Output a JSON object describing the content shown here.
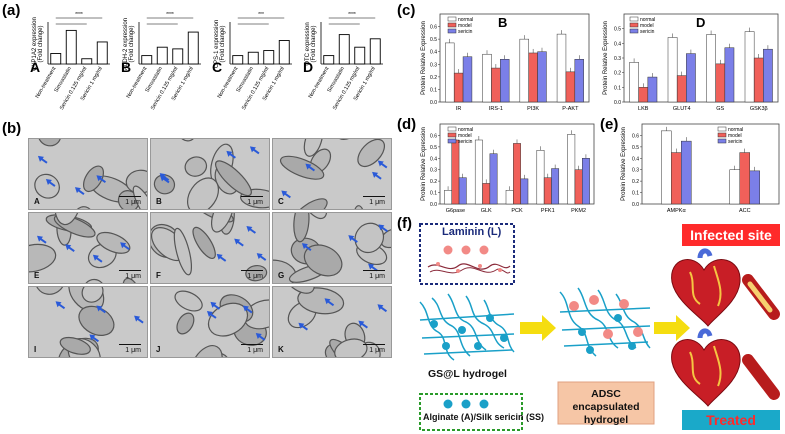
{
  "panel_labels": {
    "a": "(a)",
    "b": "(b)",
    "c": "(c)",
    "d": "(d)",
    "e": "(e)",
    "f": "(f)"
  },
  "panel_a_charts": [
    {
      "letter": "A",
      "ylabel": "CYP1A2 expression",
      "ylabel2": "(Fold change)",
      "sig": "****"
    },
    {
      "letter": "B",
      "ylabel": "ALDH-2 expression",
      "ylabel2": "(Fold change)",
      "sig": "****"
    },
    {
      "letter": "C",
      "ylabel": "CPS-1 expression",
      "ylabel2": "(Fold change)",
      "sig": "***"
    },
    {
      "letter": "D",
      "ylabel": "OTC expression",
      "ylabel2": "(Fold change)",
      "sig": "****"
    }
  ],
  "panel_a_categories": [
    "Non-treatment",
    "Simvastatin",
    "Sericin 0.125 mg/ml",
    "Sericin 1 mg/ml"
  ],
  "em_images": [
    {
      "letter": "A",
      "scale": "1 μm"
    },
    {
      "letter": "B",
      "scale": "1 μm"
    },
    {
      "letter": "C",
      "scale": "1 μm"
    },
    {
      "letter": "E",
      "scale": "1 μm"
    },
    {
      "letter": "F",
      "scale": "1 μm"
    },
    {
      "letter": "G",
      "scale": "1 μm"
    },
    {
      "letter": "I",
      "scale": "1 μm"
    },
    {
      "letter": "J",
      "scale": "1 μm"
    },
    {
      "letter": "K",
      "scale": "1 μm"
    }
  ],
  "legend": {
    "normal": "normal",
    "model": "model",
    "sericin": "sericin"
  },
  "colors": {
    "normal": "#ffffff",
    "model": "#f0605a",
    "sericin": "#7b7fe8",
    "yellow_arrow": "#f5dd10",
    "red_title_bg": "#ff2a2a",
    "teal_title_bg": "#1aa9c9",
    "label_box_bg": "#f6c6a6"
  },
  "chart_data": [
    {
      "id": "a-A",
      "type": "bar",
      "categories": [
        "Non-treatment",
        "Simvastatin",
        "Sericin 0.125 mg/ml",
        "Sericin 1 mg/ml"
      ],
      "values": [
        1.0,
        3.2,
        0.5,
        2.1
      ],
      "ylim": [
        0,
        4
      ]
    },
    {
      "id": "a-B",
      "type": "bar",
      "categories": [
        "Non-treatment",
        "Simvastatin",
        "Sericin 0.125 mg/ml",
        "Sericin 1 mg/ml"
      ],
      "values": [
        1.0,
        2.0,
        1.8,
        3.8
      ],
      "ylim": [
        0,
        5
      ]
    },
    {
      "id": "a-C",
      "type": "bar",
      "categories": [
        "Non-treatment",
        "Simvastatin",
        "Sericin 0.125 mg/ml",
        "Sericin 1 mg/ml"
      ],
      "values": [
        1.0,
        1.4,
        1.6,
        2.8
      ],
      "ylim": [
        0,
        5
      ]
    },
    {
      "id": "a-D",
      "type": "bar",
      "categories": [
        "Non-treatment",
        "Simvastatin",
        "Sericin 0.125 mg/ml",
        "Sericin 1 mg/ml"
      ],
      "values": [
        1.0,
        3.5,
        2.0,
        3.0
      ],
      "ylim": [
        0,
        5
      ]
    },
    {
      "id": "c-B",
      "type": "bar",
      "title": "B",
      "ylabel": "Protein Relative Expression",
      "categories": [
        "IR",
        "IRS-1",
        "PI3K",
        "P-AKT"
      ],
      "series": [
        {
          "name": "normal",
          "values": [
            0.47,
            0.38,
            0.5,
            0.54
          ]
        },
        {
          "name": "model",
          "values": [
            0.23,
            0.27,
            0.39,
            0.24
          ]
        },
        {
          "name": "sericin",
          "values": [
            0.36,
            0.34,
            0.4,
            0.34
          ]
        }
      ],
      "ylim": [
        0,
        0.7
      ]
    },
    {
      "id": "c-D",
      "type": "bar",
      "title": "D",
      "ylabel": "Protein Relative Expression",
      "categories": [
        "LKB",
        "GLUT4",
        "GS",
        "GSK3β"
      ],
      "series": [
        {
          "name": "normal",
          "values": [
            0.27,
            0.44,
            0.46,
            0.48
          ]
        },
        {
          "name": "model",
          "values": [
            0.1,
            0.18,
            0.26,
            0.3
          ]
        },
        {
          "name": "sericin",
          "values": [
            0.17,
            0.33,
            0.37,
            0.36
          ]
        }
      ],
      "ylim": [
        0,
        0.6
      ]
    },
    {
      "id": "d",
      "type": "bar",
      "ylabel": "Protein Relative Expression",
      "categories": [
        "G6pase",
        "GLK",
        "PCK",
        "PFK1",
        "PKM2"
      ],
      "series": [
        {
          "name": "normal",
          "values": [
            0.12,
            0.56,
            0.12,
            0.47,
            0.61
          ]
        },
        {
          "name": "model",
          "values": [
            0.56,
            0.18,
            0.53,
            0.23,
            0.3
          ]
        },
        {
          "name": "sericin",
          "values": [
            0.23,
            0.44,
            0.22,
            0.31,
            0.4
          ]
        }
      ],
      "ylim": [
        0,
        0.7
      ]
    },
    {
      "id": "e",
      "type": "bar",
      "ylabel": "Protein Relative Expression",
      "categories": [
        "AMPKα",
        "ACC"
      ],
      "series": [
        {
          "name": "normal",
          "values": [
            0.64,
            0.3
          ]
        },
        {
          "name": "model",
          "values": [
            0.45,
            0.45
          ]
        },
        {
          "name": "sericin",
          "values": [
            0.55,
            0.29
          ]
        }
      ],
      "ylim": [
        0,
        0.7
      ]
    }
  ],
  "panel_f": {
    "laminin": "Laminin (L)",
    "hydrogel": "GS@L hydrogel",
    "alginate": "Alginate (A)/Silk sericin (SS)",
    "adsc": "ADSC encapsulated hydrogel",
    "infected": "Infected site",
    "treated": "Treated"
  }
}
